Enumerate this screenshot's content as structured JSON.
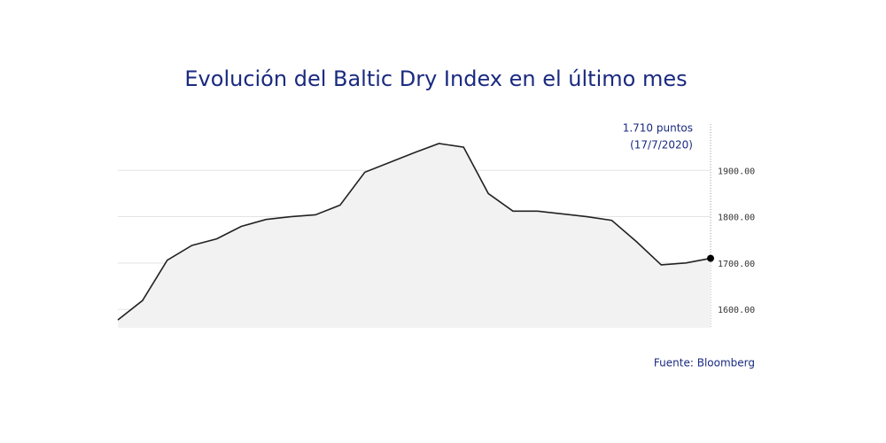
{
  "chart_data": {
    "type": "area",
    "title": "Evolución del Baltic Dry Index en el último mes",
    "annotations": [
      "1.710 puntos",
      "(17/7/2020)"
    ],
    "source": "Fuente: Bloomberg",
    "categories": [
      null,
      null,
      null,
      null,
      null,
      null,
      null,
      null,
      null,
      null,
      null,
      null,
      null,
      null,
      null,
      null,
      null,
      null,
      null,
      null,
      null,
      null,
      null,
      null,
      null
    ],
    "series": [
      {
        "color": "#222222",
        "axis": "y2",
        "values": [
          1577,
          1619,
          1706,
          1738,
          1752,
          1779,
          1794,
          1800,
          1804,
          1825,
          1896,
          1917,
          1938,
          1958,
          1950,
          1850,
          1812,
          1812,
          1806,
          1800,
          1792,
          1746,
          1696,
          1700,
          1710
        ]
      }
    ],
    "y2lim": [
      1560,
      2000
    ],
    "y2ticks": [
      {
        "value": 1600,
        "label": "1600.00"
      },
      {
        "value": 1700,
        "label": "1700.00"
      },
      {
        "value": 1800,
        "label": "1800.00"
      },
      {
        "value": 1900,
        "label": "1900.00"
      }
    ],
    "grid": true
  }
}
